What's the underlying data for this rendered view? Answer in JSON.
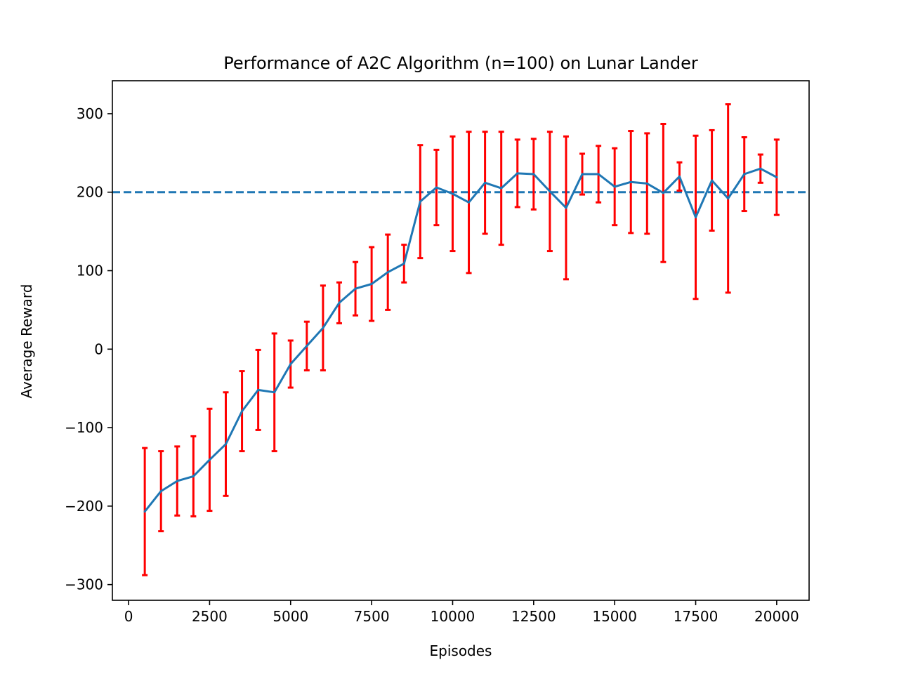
{
  "chart_data": {
    "type": "line",
    "title": "Performance of A2C Algorithm (n=100) on Lunar Lander",
    "xlabel": "Episodes",
    "ylabel": "Average Reward",
    "xlim": [
      -500,
      21000
    ],
    "ylim": [
      -320,
      342
    ],
    "x_ticks": [
      0,
      2500,
      5000,
      7500,
      10000,
      12500,
      15000,
      17500,
      20000
    ],
    "x_tick_labels": [
      "0",
      "2500",
      "5000",
      "7500",
      "10000",
      "12500",
      "15000",
      "17500",
      "20000"
    ],
    "y_ticks": [
      -300,
      -200,
      -100,
      0,
      100,
      200,
      300
    ],
    "y_tick_labels": [
      "−300",
      "−200",
      "−100",
      "0",
      "100",
      "200",
      "300"
    ],
    "grid": false,
    "reference_line": {
      "y": 200,
      "style": "dashed",
      "color": "#1f77b4"
    },
    "series": [
      {
        "color": "#1f77b4",
        "error_color": "#ff0000",
        "x": [
          500,
          1000,
          1500,
          2000,
          2500,
          3000,
          3500,
          4000,
          4500,
          5000,
          5500,
          6000,
          6500,
          7000,
          7500,
          8000,
          8500,
          9000,
          9500,
          10000,
          10500,
          11000,
          11500,
          12000,
          12500,
          13000,
          13500,
          14000,
          14500,
          15000,
          15500,
          16000,
          16500,
          17000,
          17500,
          18000,
          18500,
          19000,
          19500,
          20000
        ],
        "y": [
          -207,
          -181,
          -168,
          -162,
          -141,
          -121,
          -79,
          -52,
          -55,
          -19,
          4,
          27,
          59,
          77,
          83,
          98,
          109,
          188,
          206,
          198,
          187,
          212,
          205,
          224,
          223,
          201,
          180,
          223,
          223,
          207,
          213,
          211,
          199,
          220,
          168,
          215,
          192,
          223,
          230,
          219
        ],
        "error": [
          81,
          51,
          44,
          51,
          65,
          66,
          51,
          51,
          75,
          30,
          31,
          54,
          26,
          34,
          47,
          48,
          24,
          72,
          48,
          73,
          90,
          65,
          72,
          43,
          45,
          76,
          91,
          26,
          36,
          49,
          65,
          64,
          88,
          18,
          104,
          64,
          120,
          47,
          18,
          48
        ]
      }
    ]
  }
}
